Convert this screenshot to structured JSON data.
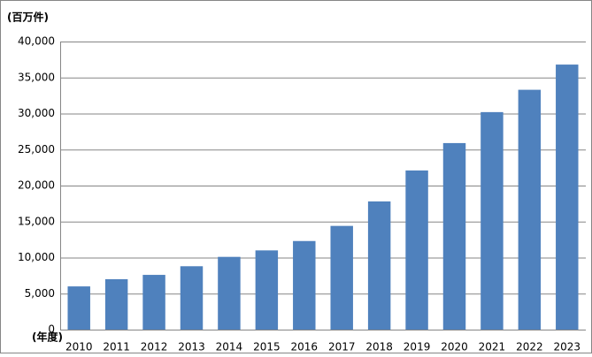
{
  "chart_data": {
    "type": "bar",
    "y_axis_label": "(百万件)",
    "x_axis_label": "(年度)",
    "categories": [
      "2010",
      "2011",
      "2012",
      "2013",
      "2014",
      "2015",
      "2016",
      "2017",
      "2018",
      "2019",
      "2020",
      "2021",
      "2022",
      "2023"
    ],
    "values": [
      6000,
      7000,
      7600,
      8800,
      10100,
      11000,
      12300,
      14400,
      17800,
      22100,
      25900,
      30200,
      33300,
      36800
    ],
    "color": "#4f81bd",
    "ylim": [
      0,
      40000
    ],
    "yticks": [
      0,
      {
        "value": 5000,
        "label": "5,000"
      },
      {
        "value": 10000,
        "label": "10,000"
      },
      {
        "value": 15000,
        "label": "15,000"
      },
      {
        "value": 20000,
        "label": "20,000"
      },
      {
        "value": 25000,
        "label": "25,000"
      },
      {
        "value": 30000,
        "label": "30,000"
      },
      {
        "value": 35000,
        "label": "35,000"
      },
      {
        "value": 40000,
        "label": "40,000"
      }
    ],
    "grid": true
  }
}
